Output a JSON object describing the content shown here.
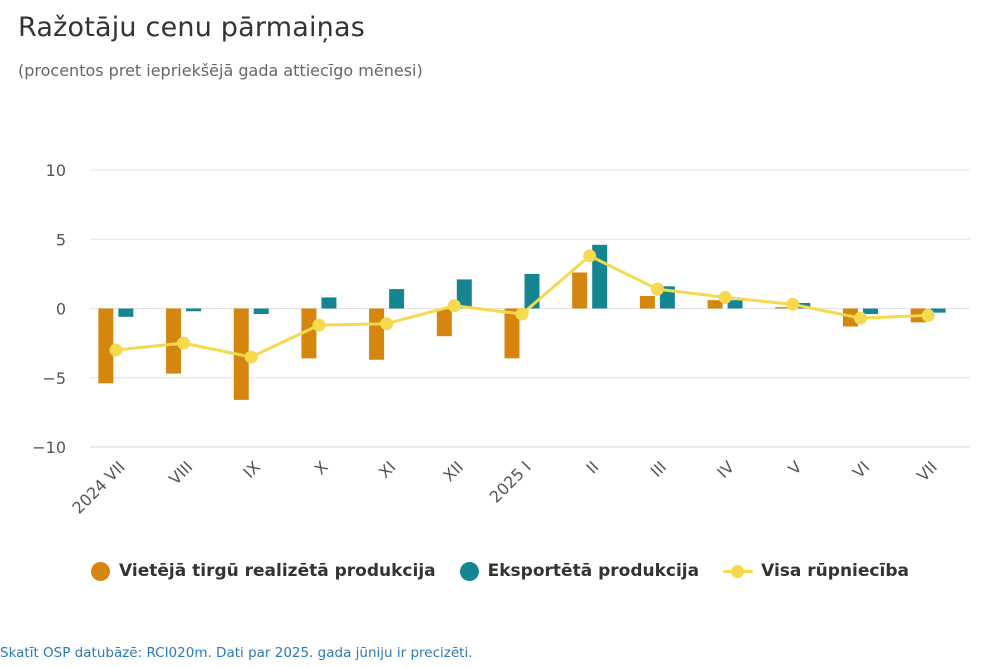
{
  "title": "Ražotāju cenu pārmaiņas",
  "subtitle": "(procentos pret iepriekšējā gada attiecīgo mēnesi)",
  "footer": "Skatīt OSP datubāzē: RCI020m. Dati par 2025. gada jūniju ir precizēti.",
  "colors": {
    "domestic": "#d4860f",
    "export": "#158591",
    "total": "#f5d94e",
    "grid": "#e3e3e3",
    "axis": "#ccd6eb"
  },
  "chart_data": {
    "type": "bar",
    "categories": [
      "2024 VII",
      "VIII",
      "IX",
      "X",
      "XI",
      "XII",
      "2025 I",
      "II",
      "III",
      "IV",
      "V",
      "VI",
      "VII"
    ],
    "ylim": [
      -10,
      10
    ],
    "yticks": [
      "10",
      "5",
      "0",
      "−5",
      "−10"
    ],
    "series": [
      {
        "name": "Vietējā tirgū realizētā produkcija",
        "type": "bar",
        "values": [
          -5.4,
          -4.7,
          -6.6,
          -3.6,
          -3.7,
          -2.0,
          -3.6,
          2.6,
          0.9,
          0.6,
          0.1,
          -1.3,
          -1.0
        ]
      },
      {
        "name": "Eksportētā produkcija",
        "type": "bar",
        "values": [
          -0.6,
          -0.2,
          -0.4,
          0.8,
          1.4,
          2.1,
          2.5,
          4.6,
          1.6,
          0.6,
          0.4,
          -0.4,
          -0.3
        ]
      },
      {
        "name": "Visa rūpniecība",
        "type": "line",
        "values": [
          -3.0,
          -2.5,
          -3.5,
          -1.2,
          -1.1,
          0.2,
          -0.4,
          3.8,
          1.4,
          0.8,
          0.3,
          -0.7,
          -0.5
        ]
      }
    ],
    "legend": "bottom"
  }
}
